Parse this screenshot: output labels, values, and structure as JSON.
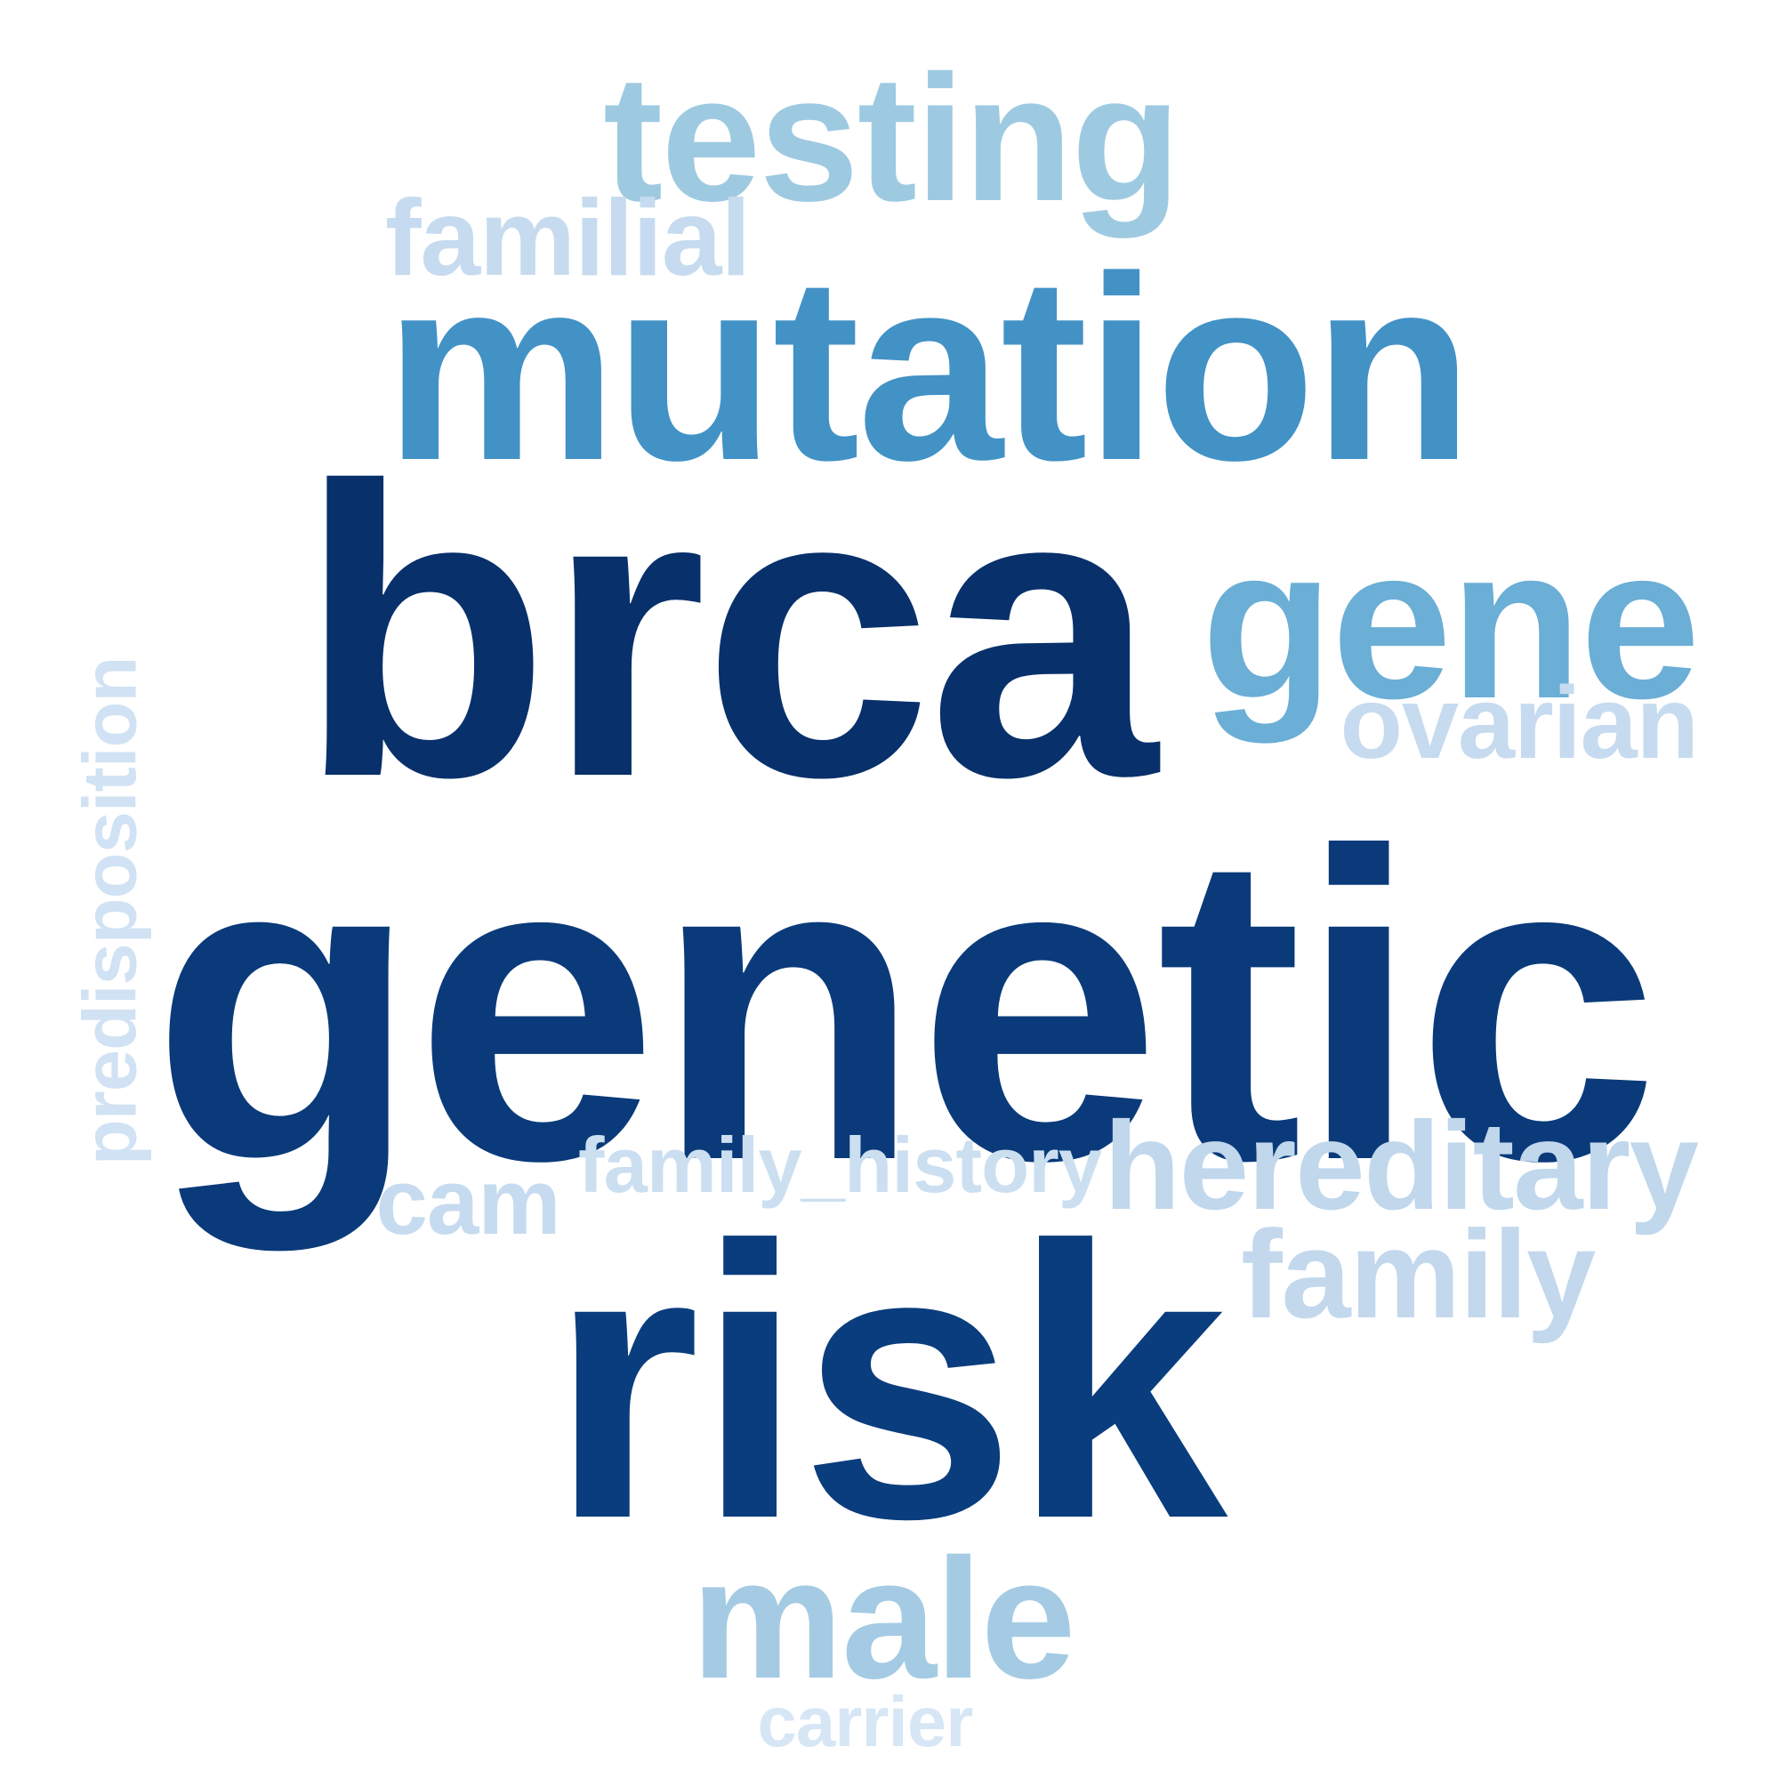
{
  "words": {
    "brca": {
      "text": "brca",
      "color": "#08306b"
    },
    "genetic": {
      "text": "genetic",
      "color": "#0a3a7a"
    },
    "risk": {
      "text": "risk",
      "color": "#0a3d7d"
    },
    "mutation": {
      "text": "mutation",
      "color": "#4292c6"
    },
    "gene": {
      "text": "gene",
      "color": "#6baed6"
    },
    "testing": {
      "text": "testing",
      "color": "#9ecae1"
    },
    "male": {
      "text": "male",
      "color": "#a4cbe3"
    },
    "hereditary": {
      "text": "hereditary",
      "color": "#c0d7ec"
    },
    "family": {
      "text": "family",
      "color": "#c3d8ed"
    },
    "ovarian": {
      "text": "ovarian",
      "color": "#c6dbef"
    },
    "familial": {
      "text": "familial",
      "color": "#c6dbef"
    },
    "cam": {
      "text": "cam",
      "color": "#c6dbef"
    },
    "family_history": {
      "text": "family_history",
      "color": "#cbdff1"
    },
    "predisposition": {
      "text": "predisposition",
      "color": "#d0e2f3"
    },
    "carrier": {
      "text": "carrier",
      "color": "#d6e6f5"
    }
  }
}
